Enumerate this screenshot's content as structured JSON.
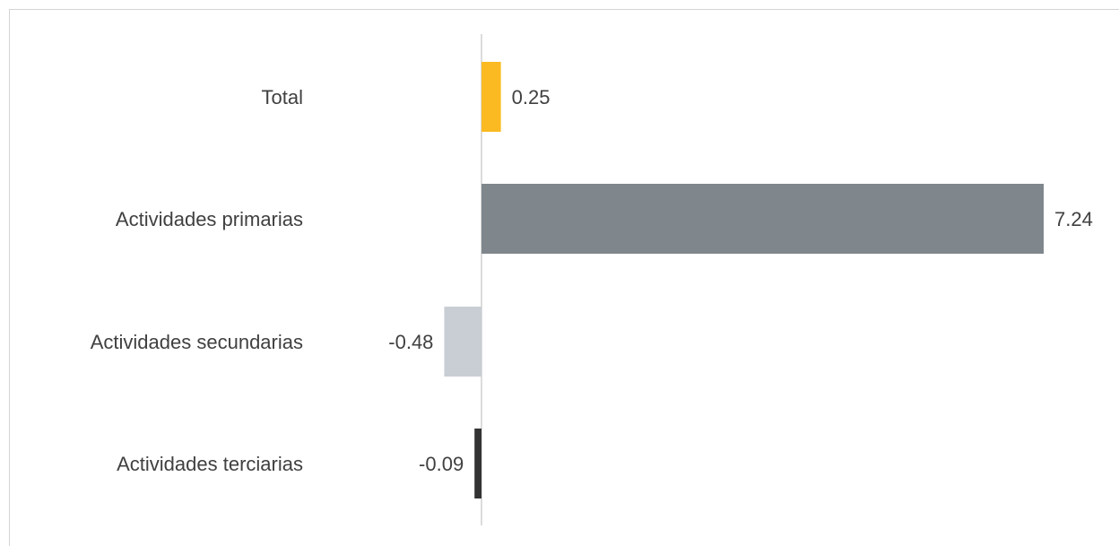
{
  "chart_data": {
    "type": "bar",
    "orientation": "horizontal",
    "title": "",
    "categories": [
      "Total",
      "Actividades primarias",
      "Actividades secundarias",
      "Actividades terciarias"
    ],
    "values": [
      0.25,
      7.24,
      -0.48,
      -0.09
    ],
    "value_labels": [
      "0.25",
      "7.24",
      "-0.48",
      "-0.09"
    ],
    "colors": [
      "#fbba22",
      "#7f878c",
      "#c9ced4",
      "#333333"
    ],
    "xlim": [
      -0.55,
      7.5
    ],
    "grid": false,
    "legend": "none"
  }
}
